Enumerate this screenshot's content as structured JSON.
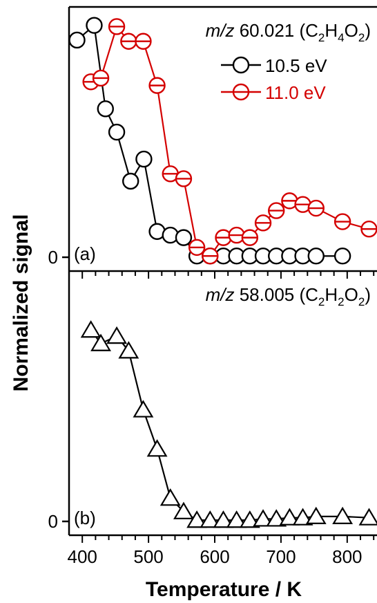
{
  "chart_data": [
    {
      "panel_label": "(a)",
      "type": "scatter",
      "title": {
        "mz_italic": "m/z",
        "mz_value": " 60.021 (C",
        "sub1": "2",
        "mid1": "H",
        "sub2": "4",
        "mid2": "O",
        "sub3": "2",
        "close": ")"
      },
      "ylabel": "Normalized signal",
      "xlabel": "Temperature / K",
      "xlim": [
        380,
        845
      ],
      "ylim": [
        -0.045,
        1.0
      ],
      "y_tick_label": "0",
      "legend_position": "top-right",
      "series": [
        {
          "name": "10.5 eV",
          "marker": "circle",
          "color": "#000000",
          "x": [
            392,
            418,
            435,
            452,
            473,
            493,
            513,
            533,
            553,
            573,
            593,
            613,
            633,
            653,
            673,
            693,
            713,
            733,
            753,
            793
          ],
          "y": [
            0.885,
            0.945,
            0.605,
            0.51,
            0.31,
            0.4,
            0.105,
            0.09,
            0.08,
            0.005,
            0.005,
            0.005,
            0.005,
            0.005,
            0.005,
            0.005,
            0.005,
            0.005,
            0.005,
            0.005
          ]
        },
        {
          "name": "11.0 eV",
          "marker": "circle-bar",
          "color": "#d40000",
          "x": [
            413,
            428,
            452,
            470,
            492,
            513,
            533,
            553,
            573,
            593,
            613,
            633,
            653,
            673,
            693,
            713,
            733,
            753,
            793,
            833
          ],
          "y": [
            0.715,
            0.73,
            0.94,
            0.88,
            0.88,
            0.7,
            0.34,
            0.32,
            0.04,
            0.005,
            0.08,
            0.09,
            0.08,
            0.14,
            0.19,
            0.23,
            0.215,
            0.2,
            0.145,
            0.115
          ]
        }
      ]
    },
    {
      "panel_label": "(b)",
      "type": "scatter",
      "title": {
        "mz_italic": "m/z",
        "mz_value": " 58.005 (C",
        "sub1": "2",
        "mid1": "H",
        "sub2": "2",
        "mid2": "O",
        "sub3": "2",
        "close": ")"
      },
      "xlim": [
        380,
        845
      ],
      "ylim": [
        -0.045,
        1.0
      ],
      "y_tick_label": "0",
      "x_ticks": [
        400,
        500,
        600,
        700,
        800
      ],
      "x_tick_labels": [
        "400",
        "500",
        "600",
        "700",
        "800"
      ],
      "series": [
        {
          "marker": "triangle",
          "color": "#000000",
          "x": [
            413,
            428,
            452,
            470,
            492,
            513,
            533,
            553,
            573,
            593,
            613,
            633,
            653,
            673,
            693,
            713,
            733,
            753,
            793,
            833
          ],
          "y": [
            0.78,
            0.725,
            0.755,
            0.695,
            0.455,
            0.295,
            0.095,
            0.04,
            0.005,
            0.005,
            0.005,
            0.005,
            0.005,
            0.01,
            0.01,
            0.015,
            0.015,
            0.02,
            0.02,
            0.015
          ]
        }
      ]
    }
  ]
}
